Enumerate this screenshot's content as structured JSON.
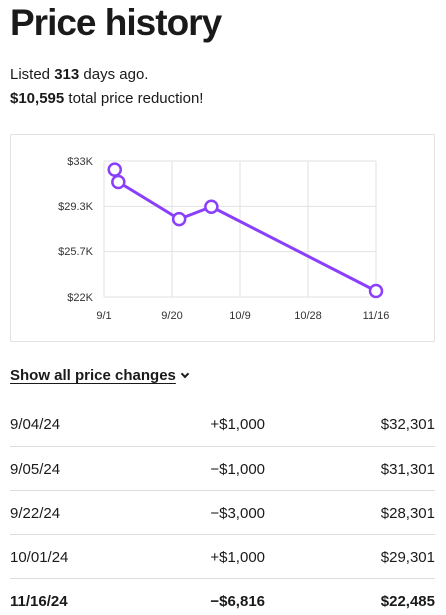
{
  "header": {
    "title": "Price history",
    "listed_prefix": "Listed ",
    "listed_days": "313",
    "listed_suffix": " days ago.",
    "reduction_amount": "$10,595",
    "reduction_suffix": " total price reduction!"
  },
  "chart_data": {
    "type": "line",
    "x": [
      "9/04/24",
      "9/05/24",
      "9/22/24",
      "10/01/24",
      "11/16/24"
    ],
    "series": [
      {
        "values": [
          32301,
          31301,
          28301,
          29301,
          22485
        ]
      }
    ],
    "x_ticks": [
      "9/1",
      "9/20",
      "10/9",
      "10/28",
      "11/16"
    ],
    "y_ticks": [
      "$33K",
      "$29.3K",
      "$25.7K",
      "$22K"
    ],
    "ylim": [
      22000,
      33000
    ],
    "grid": true,
    "line_color": "#8a3ffc"
  },
  "show_all_label": "Show all price changes",
  "price_changes": [
    {
      "date": "9/04/24",
      "change": "+$1,000",
      "price": "$32,301"
    },
    {
      "date": "9/05/24",
      "change": "−$1,000",
      "price": "$31,301"
    },
    {
      "date": "9/22/24",
      "change": "−$3,000",
      "price": "$28,301"
    },
    {
      "date": "10/01/24",
      "change": "+$1,000",
      "price": "$29,301"
    },
    {
      "date": "11/16/24",
      "change": "−$6,816",
      "price": "$22,485"
    }
  ]
}
